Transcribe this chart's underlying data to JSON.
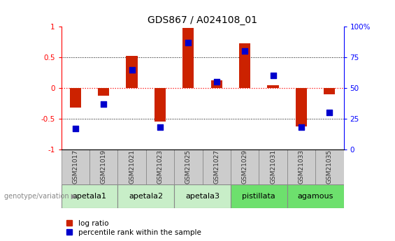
{
  "title": "GDS867 / A024108_01",
  "samples": [
    "GSM21017",
    "GSM21019",
    "GSM21021",
    "GSM21023",
    "GSM21025",
    "GSM21027",
    "GSM21029",
    "GSM21031",
    "GSM21033",
    "GSM21035"
  ],
  "log_ratio": [
    -0.32,
    -0.13,
    0.52,
    -0.55,
    0.98,
    0.12,
    0.73,
    0.04,
    -0.63,
    -0.1
  ],
  "percentile_rank": [
    17,
    37,
    65,
    18,
    87,
    55,
    80,
    60,
    18,
    30
  ],
  "groups": [
    {
      "label": "apetala1",
      "samples": [
        0,
        1
      ],
      "color": "#c8eec8"
    },
    {
      "label": "apetala2",
      "samples": [
        2,
        3
      ],
      "color": "#c8eec8"
    },
    {
      "label": "apetala3",
      "samples": [
        4,
        5
      ],
      "color": "#c8eec8"
    },
    {
      "label": "pistillata",
      "samples": [
        6,
        7
      ],
      "color": "#6de06d"
    },
    {
      "label": "agamous",
      "samples": [
        8,
        9
      ],
      "color": "#6de06d"
    }
  ],
  "bar_color_red": "#cc2200",
  "bar_color_blue": "#0000cc",
  "ylim_left": [
    -1.0,
    1.0
  ],
  "bar_width": 0.4,
  "dot_size": 40,
  "sample_box_color": "#cccccc",
  "genotype_arrow_color": "#888888"
}
